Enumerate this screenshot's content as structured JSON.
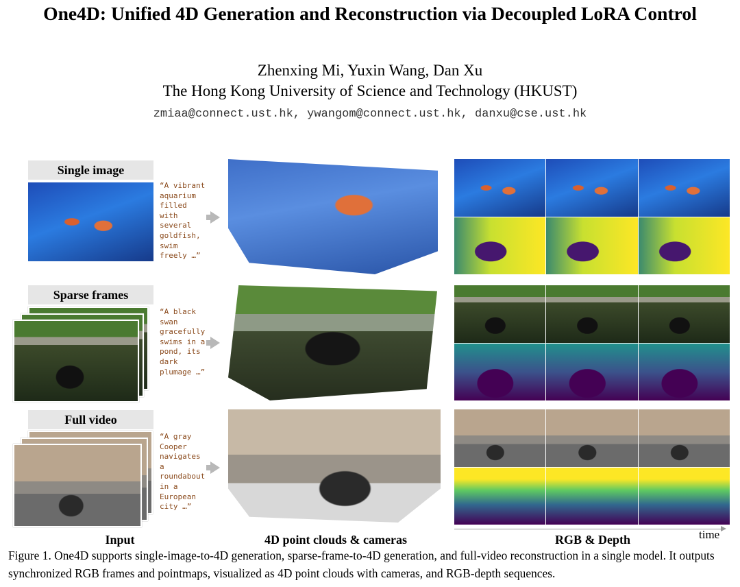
{
  "header": {
    "title": "One4D: Unified 4D Generation and Reconstruction via Decoupled LoRA Control",
    "authors": "Zhenxing Mi, Yuxin Wang, Dan Xu",
    "affiliation": "The Hong Kong University of Science and Technology (HKUST)",
    "emails": "zmiaa@connect.ust.hk, ywangom@connect.ust.hk, danxu@cse.ust.hk"
  },
  "figure": {
    "rows": [
      {
        "label": "Single image",
        "prompt": "“A vibrant aquarium filled with several goldfish, swim freely …”"
      },
      {
        "label": "Sparse frames",
        "prompt": "“A black swan gracefully swims in a pond, its dark plumage …”"
      },
      {
        "label": "Full video",
        "prompt": "“A gray Cooper navigates a roundabout in a European city …”"
      }
    ],
    "column_labels": [
      "Input",
      "4D point clouds & cameras",
      "RGB & Depth"
    ],
    "time_label": "time",
    "caption": "Figure 1. One4D supports single-image-to-4D generation, sparse-frame-to-4D generation, and full-video reconstruction in a single model. It outputs synchronized RGB frames and pointmaps, visualized as 4D point clouds with cameras, and RGB-depth sequences."
  }
}
